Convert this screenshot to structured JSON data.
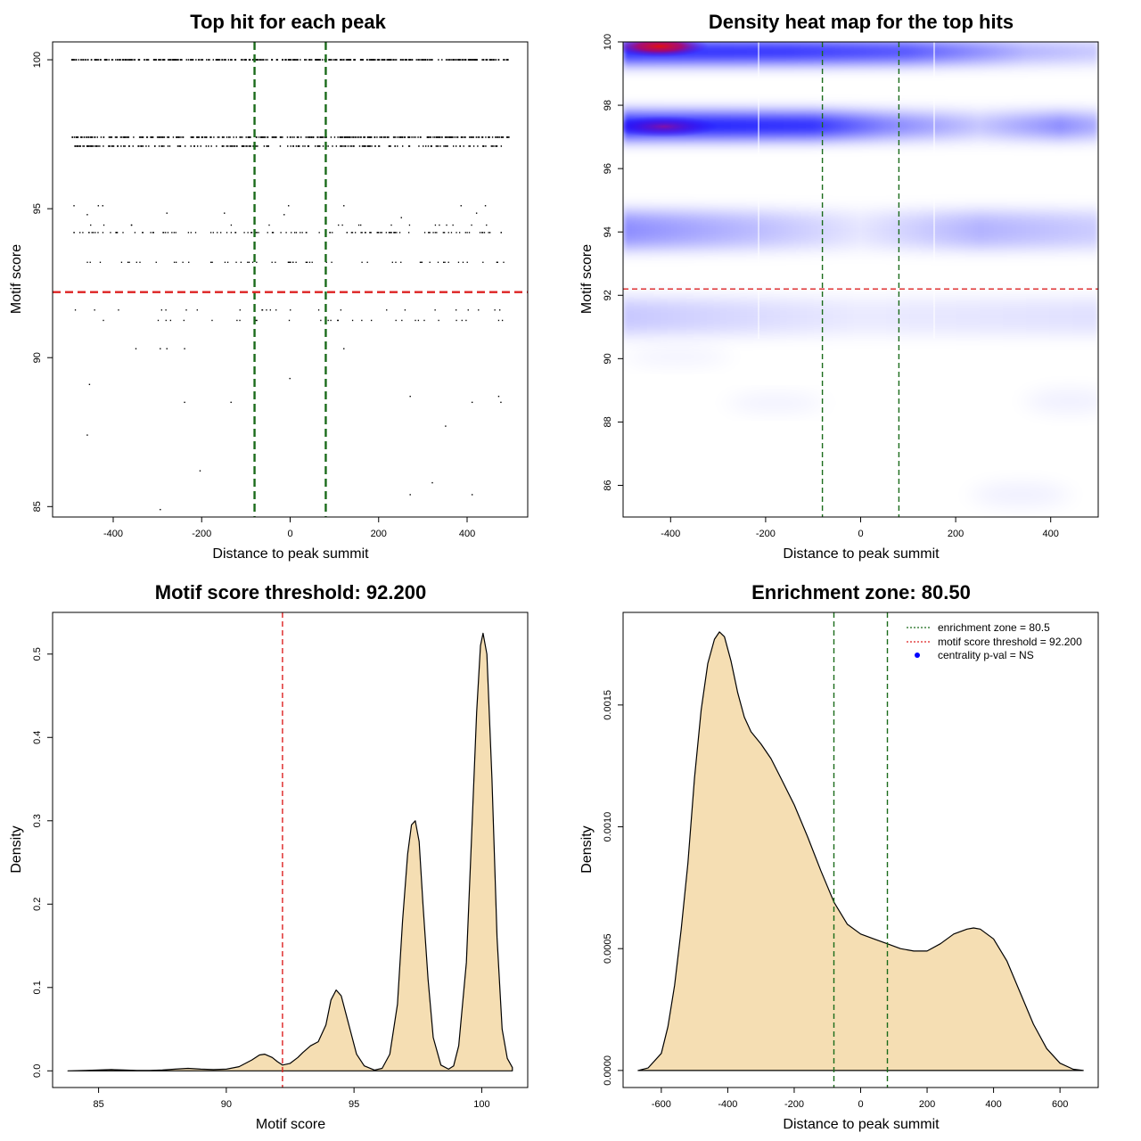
{
  "chart_data": [
    {
      "id": "top_hit_scatter",
      "type": "scatter",
      "title": "Top hit for each peak",
      "xlabel": "Distance to peak summit",
      "ylabel": "Motif score",
      "xlim": [
        -537,
        537
      ],
      "ylim": [
        84.65,
        100.6
      ],
      "xticks": [
        -400,
        -200,
        0,
        200,
        400
      ],
      "yticks": [
        85,
        90,
        95,
        100
      ],
      "hlines": [
        {
          "y": 92.2,
          "color": "#dd2222",
          "style": "dashed"
        }
      ],
      "vlines": [
        {
          "x": -80.5,
          "color": "#1a6b1a",
          "style": "dashed"
        },
        {
          "x": 80.5,
          "color": "#1a6b1a",
          "style": "dashed"
        }
      ],
      "dense_rows": [
        {
          "y": 100.0,
          "x_range": [
            -495,
            495
          ],
          "count": 420
        },
        {
          "y": 97.4,
          "x_range": [
            -495,
            495
          ],
          "count": 340
        },
        {
          "y": 97.1,
          "x_range": [
            -490,
            495
          ],
          "count": 200
        }
      ],
      "sparse_rows": [
        {
          "y": 94.45,
          "count": 18
        },
        {
          "y": 94.2,
          "count": 120
        },
        {
          "y": 93.2,
          "count": 60
        },
        {
          "y": 91.6,
          "count": 25
        },
        {
          "y": 91.25,
          "count": 30
        }
      ],
      "points": [
        [
          -490,
          95.1
        ],
        [
          -435,
          95.1
        ],
        [
          -425,
          95.1
        ],
        [
          -5,
          95.1
        ],
        [
          120,
          95.1
        ],
        [
          385,
          95.1
        ],
        [
          440,
          95.1
        ],
        [
          -460,
          94.8
        ],
        [
          -280,
          94.85
        ],
        [
          -150,
          94.85
        ],
        [
          -15,
          94.8
        ],
        [
          250,
          94.7
        ],
        [
          420,
          94.85
        ],
        [
          -295,
          90.3
        ],
        [
          -280,
          90.3
        ],
        [
          -240,
          90.3
        ],
        [
          -350,
          90.3
        ],
        [
          120,
          90.3
        ],
        [
          -2,
          89.3
        ],
        [
          -455,
          89.1
        ],
        [
          -240,
          88.5
        ],
        [
          -135,
          88.5
        ],
        [
          270,
          88.7
        ],
        [
          410,
          88.5
        ],
        [
          470,
          88.7
        ],
        [
          475,
          88.5
        ],
        [
          350,
          87.7
        ],
        [
          -460,
          87.4
        ],
        [
          -205,
          86.2
        ],
        [
          320,
          85.8
        ],
        [
          270,
          85.4
        ],
        [
          410,
          85.4
        ],
        [
          -295,
          84.9
        ]
      ]
    },
    {
      "id": "density_heatmap",
      "type": "heatmap",
      "title": "Density heat map for the top hits",
      "xlabel": "Distance to peak summit",
      "ylabel": "Motif score",
      "xlim": [
        -500,
        500
      ],
      "ylim": [
        85,
        100
      ],
      "xticks": [
        -400,
        -200,
        0,
        200,
        400
      ],
      "yticks": [
        86,
        88,
        90,
        92,
        94,
        96,
        98,
        100
      ],
      "hlines": [
        {
          "y": 92.2,
          "color": "#dd2222",
          "style": "dashed"
        }
      ],
      "vlines": [
        {
          "x": -80.5,
          "color": "#1a6b1a",
          "style": "dashed"
        },
        {
          "x": 80.5,
          "color": "#1a6b1a",
          "style": "dashed"
        }
      ],
      "color_scale": [
        "#ffffff",
        "#0000ff",
        "#ff0000"
      ],
      "hot_spots": [
        {
          "x": -420,
          "y": 99.85,
          "level": "red"
        },
        {
          "x": -420,
          "y": 97.4,
          "level": "purple"
        }
      ]
    },
    {
      "id": "score_density",
      "type": "area",
      "title": "Motif score threshold: 92.200",
      "xlabel": "Motif score",
      "ylabel": "Density",
      "xlim": [
        83.2,
        101.8
      ],
      "ylim": [
        -0.02,
        0.55
      ],
      "xticks": [
        85,
        90,
        95,
        100
      ],
      "yticks": [
        0.0,
        0.1,
        0.2,
        0.3,
        0.4,
        0.5
      ],
      "ytick_labels": [
        "0.0",
        "0.1",
        "0.2",
        "0.3",
        "0.4",
        "0.5"
      ],
      "fill": "#f5deb3",
      "vlines": [
        {
          "x": 92.2,
          "color": "#dd2222",
          "style": "dashed"
        }
      ],
      "x": [
        83.8,
        84.5,
        85.0,
        85.5,
        86.0,
        86.5,
        87.0,
        87.5,
        88.0,
        88.5,
        89.0,
        89.5,
        90.0,
        90.5,
        91.0,
        91.3,
        91.5,
        91.8,
        92.0,
        92.2,
        92.5,
        92.8,
        93.0,
        93.3,
        93.6,
        93.9,
        94.1,
        94.3,
        94.5,
        94.8,
        95.1,
        95.4,
        95.8,
        96.1,
        96.4,
        96.7,
        96.9,
        97.1,
        97.25,
        97.4,
        97.55,
        97.7,
        97.9,
        98.1,
        98.4,
        98.7,
        98.9,
        99.1,
        99.4,
        99.6,
        99.8,
        99.95,
        100.05,
        100.2,
        100.4,
        100.6,
        100.8,
        101.0,
        101.2
      ],
      "y": [
        0.0,
        0.0005,
        0.001,
        0.0015,
        0.001,
        0.0005,
        0.0005,
        0.001,
        0.002,
        0.003,
        0.002,
        0.0015,
        0.002,
        0.005,
        0.013,
        0.019,
        0.02,
        0.016,
        0.011,
        0.007,
        0.009,
        0.016,
        0.022,
        0.03,
        0.035,
        0.055,
        0.085,
        0.097,
        0.09,
        0.055,
        0.02,
        0.006,
        0.001,
        0.003,
        0.02,
        0.08,
        0.18,
        0.26,
        0.295,
        0.3,
        0.275,
        0.2,
        0.11,
        0.04,
        0.007,
        0.002,
        0.006,
        0.03,
        0.13,
        0.28,
        0.43,
        0.51,
        0.525,
        0.5,
        0.35,
        0.16,
        0.05,
        0.015,
        0.004
      ]
    },
    {
      "id": "distance_density",
      "type": "area",
      "title": "Enrichment zone: 80.50",
      "xlabel": "Distance to peak summit",
      "ylabel": "Density",
      "xlim": [
        -715,
        715
      ],
      "ylim": [
        -7e-05,
        0.00188
      ],
      "xticks": [
        -600,
        -400,
        -200,
        0,
        200,
        400,
        600
      ],
      "yticks": [
        0.0,
        0.0005,
        0.001,
        0.0015
      ],
      "ytick_labels": [
        "0.0000",
        "0.0005",
        "0.0010",
        "0.0015"
      ],
      "fill": "#f5deb3",
      "vlines": [
        {
          "x": -80.5,
          "color": "#1a6b1a",
          "style": "dashed"
        },
        {
          "x": 80.5,
          "color": "#1a6b1a",
          "style": "dashed"
        }
      ],
      "x": [
        -670,
        -640,
        -600,
        -580,
        -560,
        -540,
        -520,
        -500,
        -480,
        -460,
        -440,
        -425,
        -410,
        -390,
        -370,
        -350,
        -330,
        -300,
        -270,
        -240,
        -200,
        -160,
        -120,
        -80,
        -40,
        0,
        40,
        80,
        120,
        160,
        200,
        240,
        280,
        320,
        340,
        360,
        400,
        440,
        480,
        520,
        560,
        600,
        640,
        670
      ],
      "y": [
        0.0,
        1e-05,
        7e-05,
        0.00018,
        0.00035,
        0.00058,
        0.00085,
        0.0012,
        0.00148,
        0.00167,
        0.00177,
        0.0018,
        0.00178,
        0.00168,
        0.00155,
        0.00145,
        0.00139,
        0.00134,
        0.00128,
        0.0012,
        0.00109,
        0.00096,
        0.00082,
        0.00069,
        0.0006,
        0.00056,
        0.00054,
        0.00052,
        0.0005,
        0.00049,
        0.00049,
        0.00052,
        0.00056,
        0.00058,
        0.000585,
        0.00058,
        0.00054,
        0.00045,
        0.00032,
        0.00019,
        9e-05,
        3e-05,
        5e-06,
        0.0
      ]
    }
  ],
  "legend": {
    "enrichment_zone_label": "enrichment zone = 80.5",
    "motif_threshold_label": "motif score threshold = 92.200",
    "centrality_pval_label": "centrality p-val = NS",
    "enrichment_zone_color": "#1a6b1a",
    "motif_threshold_color": "#dd2222",
    "centrality_color": "#0000ff"
  }
}
